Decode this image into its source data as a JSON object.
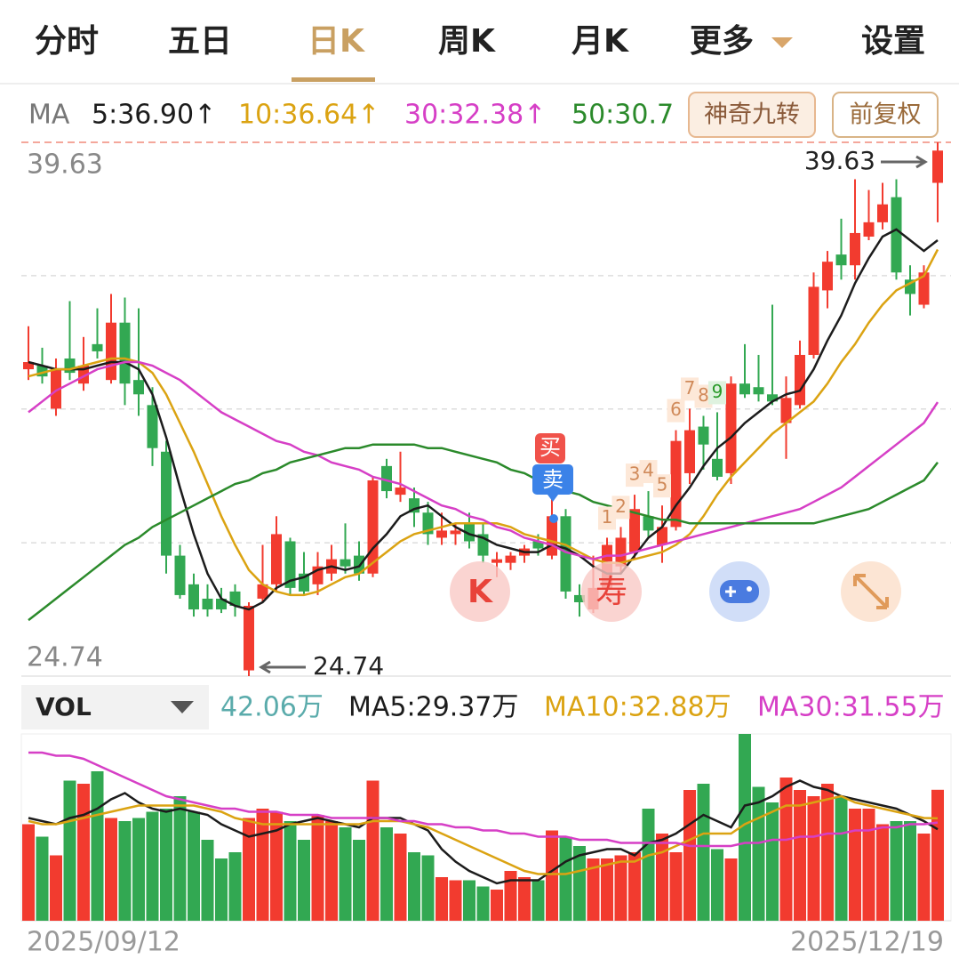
{
  "tabs": [
    "分时",
    "五日",
    "日K",
    "周K",
    "月K",
    "更多",
    "设置"
  ],
  "buttons": [
    "神奇九转",
    "前复权"
  ],
  "trade_markers": [
    "买",
    "卖"
  ],
  "floating_buttons": [
    "K",
    "寿"
  ],
  "chart_data": [
    {
      "type": "candlestick",
      "legend_title": "MA",
      "categories": [
        "2025/09/12",
        null,
        null,
        null,
        null,
        null,
        null,
        null,
        null,
        null,
        null,
        null,
        null,
        null,
        null,
        null,
        null,
        null,
        null,
        null,
        null,
        null,
        null,
        null,
        null,
        null,
        null,
        null,
        null,
        null,
        null,
        null,
        null,
        null,
        null,
        null,
        null,
        null,
        null,
        null,
        null,
        null,
        null,
        null,
        null,
        null,
        null,
        null,
        null,
        null,
        null,
        null,
        null,
        null,
        null,
        null,
        null,
        null,
        null,
        null,
        null,
        null,
        null,
        null,
        null,
        null,
        "2025/12/19"
      ],
      "open": [
        33.3,
        33.4,
        32.2,
        33.6,
        32.9,
        34.0,
        33.0,
        34.6,
        33.0,
        32.3,
        31.0,
        28.1,
        27.3,
        26.9,
        26.9,
        27.1,
        24.9,
        26.9,
        27.3,
        28.5,
        27.6,
        27.3,
        27.6,
        28.0,
        28.1,
        27.6,
        30.6,
        29.8,
        29.7,
        29.3,
        28.6,
        28.7,
        29.0,
        28.7,
        27.9,
        27.9,
        28.1,
        28.5,
        28.1,
        29.2,
        27.0,
        26.6,
        27.2,
        27.8,
        28.2,
        29.2,
        28.4,
        28.9,
        30.4,
        31.7,
        30.8,
        30.4,
        32.9,
        32.8,
        32.6,
        31.8,
        32.3,
        33.7,
        35.5,
        36.5,
        36.2,
        37.0,
        37.4,
        38.1,
        35.8,
        35.1,
        38.5
      ],
      "high": [
        34.5,
        33.9,
        33.6,
        35.2,
        34.2,
        35.0,
        35.4,
        35.3,
        35.0,
        32.8,
        31.3,
        28.4,
        27.6,
        27.3,
        27.2,
        27.3,
        26.8,
        28.4,
        29.2,
        28.6,
        28.2,
        28.2,
        28.4,
        29.0,
        28.5,
        30.3,
        30.8,
        31.0,
        30.0,
        29.6,
        29.3,
        29.0,
        29.3,
        29.0,
        28.2,
        28.2,
        28.4,
        28.7,
        29.7,
        29.4,
        27.3,
        28.1,
        28.6,
        28.9,
        29.8,
        29.9,
        29.5,
        31.6,
        32.2,
        32.0,
        32.1,
        33.1,
        34.0,
        33.7,
        35.1,
        33.1,
        34.1,
        36.0,
        36.6,
        37.5,
        38.6,
        38.3,
        38.5,
        38.6,
        36.2,
        36.2,
        39.63
      ],
      "low": [
        33.0,
        32.9,
        32.0,
        33.0,
        32.7,
        33.6,
        32.9,
        32.3,
        32.0,
        30.6,
        27.6,
        26.9,
        26.4,
        26.4,
        26.5,
        26.4,
        24.74,
        26.8,
        27.1,
        27.0,
        27.0,
        27.0,
        27.4,
        27.6,
        27.4,
        27.5,
        29.7,
        29.6,
        28.9,
        28.4,
        28.4,
        28.4,
        28.3,
        27.9,
        27.5,
        27.7,
        27.9,
        28.1,
        28.0,
        26.9,
        26.4,
        26.5,
        27.0,
        27.6,
        28.0,
        28.6,
        27.9,
        28.8,
        30.1,
        30.5,
        30.2,
        30.1,
        32.5,
        32.4,
        32.3,
        30.8,
        32.2,
        33.6,
        35.0,
        35.8,
        35.8,
        36.9,
        37.2,
        35.8,
        34.8,
        35.0,
        37.4
      ],
      "close": [
        33.5,
        33.1,
        33.3,
        33.2,
        33.4,
        33.8,
        34.6,
        32.9,
        32.6,
        31.1,
        28.1,
        27.0,
        26.6,
        26.6,
        26.6,
        26.7,
        26.7,
        27.3,
        28.7,
        27.2,
        27.1,
        27.8,
        28.0,
        27.8,
        27.6,
        30.2,
        29.9,
        30.0,
        29.3,
        28.7,
        28.8,
        28.8,
        28.5,
        28.1,
        28.0,
        28.1,
        28.3,
        28.3,
        29.2,
        27.1,
        26.8,
        27.2,
        28.4,
        28.6,
        29.4,
        28.8,
        28.9,
        31.3,
        31.6,
        31.2,
        30.3,
        32.9,
        32.6,
        32.6,
        32.4,
        32.5,
        33.7,
        35.6,
        36.3,
        36.2,
        37.1,
        37.4,
        37.9,
        36.0,
        35.4,
        36.0,
        39.4
      ],
      "up_color": "#f23b2f",
      "down_color": "#32a852",
      "series": [
        {
          "name": "5:36.90↑",
          "color": "#1c1c1c",
          "values": [
            33.5,
            33.4,
            33.3,
            33.3,
            33.3,
            33.4,
            33.5,
            33.5,
            33.3,
            32.6,
            31.4,
            30.0,
            28.7,
            27.6,
            26.9,
            26.7,
            26.6,
            26.8,
            27.2,
            27.4,
            27.5,
            27.7,
            27.8,
            27.7,
            27.8,
            28.3,
            28.7,
            29.2,
            29.4,
            29.5,
            29.2,
            28.9,
            28.7,
            28.6,
            28.4,
            28.3,
            28.2,
            28.2,
            28.4,
            28.3,
            28.1,
            27.8,
            27.6,
            27.6,
            28.1,
            28.6,
            28.9,
            29.5,
            30.0,
            30.6,
            31.1,
            31.4,
            31.8,
            32.1,
            32.4,
            32.6,
            32.7,
            33.3,
            34.1,
            34.8,
            35.7,
            36.4,
            37.0,
            37.2,
            36.9,
            36.6,
            36.9
          ]
        },
        {
          "name": "10:36.64↑",
          "color": "#dba312",
          "values": [
            33.1,
            33.2,
            33.3,
            33.3,
            33.4,
            33.5,
            33.6,
            33.6,
            33.5,
            33.2,
            32.6,
            31.8,
            31.0,
            30.1,
            29.2,
            28.4,
            27.7,
            27.3,
            27.1,
            27.0,
            27.0,
            27.1,
            27.3,
            27.5,
            27.6,
            27.9,
            28.2,
            28.5,
            28.7,
            28.8,
            28.9,
            29.0,
            29.0,
            29.0,
            29.0,
            28.9,
            28.7,
            28.6,
            28.5,
            28.4,
            28.2,
            28.0,
            27.9,
            27.9,
            28.0,
            28.1,
            28.2,
            28.4,
            28.7,
            29.2,
            29.8,
            30.3,
            30.7,
            31.1,
            31.5,
            31.8,
            32.1,
            32.4,
            32.9,
            33.5,
            34.0,
            34.6,
            35.1,
            35.5,
            35.7,
            35.9,
            36.64
          ]
        },
        {
          "name": "30:32.38↑",
          "color": "#d63fc6",
          "values": [
            32.1,
            32.4,
            32.7,
            32.9,
            33.1,
            33.3,
            33.4,
            33.5,
            33.5,
            33.4,
            33.2,
            33.0,
            32.7,
            32.4,
            32.1,
            31.9,
            31.7,
            31.5,
            31.3,
            31.2,
            31.0,
            30.9,
            30.7,
            30.6,
            30.5,
            30.3,
            30.2,
            30.1,
            29.9,
            29.7,
            29.5,
            29.4,
            29.2,
            29.1,
            28.9,
            28.8,
            28.6,
            28.5,
            28.4,
            28.2,
            28.1,
            28.0,
            28.1,
            28.1,
            28.2,
            28.3,
            28.4,
            28.5,
            28.6,
            28.7,
            28.8,
            28.9,
            29.0,
            29.1,
            29.2,
            29.3,
            29.4,
            29.6,
            29.8,
            30.0,
            30.3,
            30.6,
            30.9,
            31.2,
            31.5,
            31.8,
            32.38
          ]
        },
        {
          "name": "50:30.7",
          "color": "#2b8a2b",
          "values": [
            26.3,
            26.6,
            26.9,
            27.2,
            27.5,
            27.8,
            28.1,
            28.4,
            28.6,
            28.9,
            29.1,
            29.3,
            29.5,
            29.7,
            29.9,
            30.1,
            30.2,
            30.4,
            30.5,
            30.7,
            30.8,
            30.9,
            31.0,
            31.1,
            31.1,
            31.2,
            31.2,
            31.2,
            31.2,
            31.1,
            31.1,
            31.0,
            30.9,
            30.8,
            30.7,
            30.5,
            30.4,
            30.2,
            30.1,
            29.9,
            29.8,
            29.6,
            29.5,
            29.4,
            29.3,
            29.2,
            29.1,
            29.1,
            29.0,
            29.0,
            29.0,
            29.0,
            29.0,
            29.0,
            29.0,
            29.0,
            29.0,
            29.0,
            29.1,
            29.2,
            29.3,
            29.4,
            29.6,
            29.8,
            30.0,
            30.2,
            30.7
          ]
        }
      ],
      "ylim": [
        24.74,
        39.63
      ],
      "yticks": [
        24.74,
        39.63
      ],
      "ygrid": [
        28.46,
        32.19,
        35.91
      ],
      "nine_turn": [
        "1",
        "2",
        "3",
        "4",
        "5",
        "6",
        "7",
        "8",
        "9"
      ]
    },
    {
      "type": "bar",
      "title": "VOL",
      "latest_label": "42.06万",
      "latest_color": "#5aabab",
      "values": [
        31,
        27,
        21,
        45,
        44,
        48,
        33,
        32,
        33,
        35,
        36,
        40,
        35,
        26,
        20,
        22,
        33,
        36,
        35,
        32,
        26,
        34,
        32,
        30,
        26,
        45,
        30,
        28,
        22,
        21,
        14,
        13,
        13,
        11,
        10,
        16,
        14,
        13,
        29,
        27,
        24,
        20,
        20,
        21,
        22,
        36,
        28,
        22,
        42,
        44,
        23,
        20,
        60,
        43,
        38,
        46,
        42,
        40,
        44,
        40,
        36,
        36,
        31,
        32,
        32,
        28,
        42.06
      ],
      "ylim": [
        0,
        60
      ],
      "series": [
        {
          "name": "MA5:29.37万",
          "color": "#1c1c1c",
          "values": [
            33,
            32,
            31,
            33,
            34,
            36,
            39,
            41,
            38,
            36,
            35,
            36,
            35,
            34,
            31,
            29,
            27,
            28,
            29,
            31,
            32,
            33,
            32,
            31,
            30,
            33,
            33,
            33,
            31,
            29,
            23,
            19,
            16,
            14,
            12,
            13,
            13,
            13,
            16,
            19,
            21,
            22,
            23,
            23,
            21,
            25,
            26,
            28,
            31,
            34,
            32,
            30,
            37,
            38,
            40,
            43,
            45,
            43,
            42,
            40,
            39,
            38,
            37,
            36,
            34,
            32,
            29.37
          ]
        },
        {
          "name": "MA10:32.88万",
          "color": "#dba312",
          "values": [
            32,
            31,
            31,
            32,
            33,
            34,
            35,
            36,
            37,
            37,
            37,
            37,
            37,
            36,
            35,
            33,
            32,
            31,
            31,
            31,
            31,
            31,
            31,
            31,
            31,
            32,
            32,
            32,
            31,
            30,
            28,
            26,
            24,
            22,
            20,
            18,
            16,
            15,
            15,
            15,
            16,
            17,
            18,
            19,
            19,
            21,
            22,
            24,
            26,
            28,
            28,
            28,
            31,
            33,
            35,
            37,
            37,
            38,
            39,
            40,
            38,
            37,
            36,
            35,
            34,
            33,
            32.88
          ]
        },
        {
          "name": "MA30:31.55万",
          "color": "#d63fc6",
          "values": [
            54,
            54,
            53,
            53,
            52,
            50,
            48,
            46,
            44,
            42,
            40,
            39,
            38,
            37,
            36,
            36,
            35,
            35,
            35,
            34,
            34,
            34,
            33,
            33,
            33,
            33,
            33,
            32,
            32,
            31,
            31,
            30,
            30,
            29,
            29,
            28,
            28,
            27,
            27,
            27,
            26,
            26,
            26,
            25,
            25,
            25,
            25,
            25,
            24,
            24,
            24,
            24,
            25,
            25,
            26,
            26,
            27,
            27,
            28,
            28,
            29,
            29,
            30,
            30,
            31,
            31,
            31.55
          ]
        }
      ]
    }
  ]
}
